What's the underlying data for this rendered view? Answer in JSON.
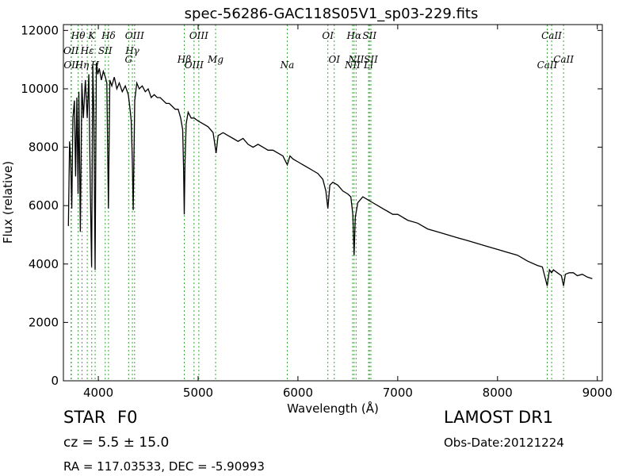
{
  "chart_data": {
    "type": "line",
    "title": "spec-56286-GAC118S05V1_sp03-229.fits",
    "xlabel": "Wavelength (Å)",
    "ylabel": "Flux (relative)",
    "xlim": [
      3650,
      9050
    ],
    "ylim": [
      0,
      12200
    ],
    "xticks": [
      4000,
      5000,
      6000,
      7000,
      8000,
      9000
    ],
    "xtick_labels": [
      "4000",
      "5000",
      "6000",
      "7000",
      "8000",
      "9000"
    ],
    "yticks": [
      0,
      2000,
      4000,
      6000,
      8000,
      10000,
      12000
    ],
    "ytick_labels": [
      "0",
      "2000",
      "4000",
      "6000",
      "8000",
      "10000",
      "12000"
    ],
    "grid": false,
    "line_color": "#000000",
    "marker_color": "#33aa33",
    "spectrum": {
      "x": [
        3700,
        3712,
        3722,
        3734,
        3745,
        3760,
        3772,
        3785,
        3797,
        3805,
        3820,
        3835,
        3850,
        3870,
        3889,
        3905,
        3920,
        3933,
        3945,
        3955,
        3968,
        3980,
        3995,
        4010,
        4030,
        4050,
        4070,
        4085,
        4101,
        4115,
        4135,
        4160,
        4185,
        4210,
        4240,
        4270,
        4300,
        4315,
        4330,
        4340,
        4350,
        4365,
        4385,
        4410,
        4440,
        4470,
        4500,
        4530,
        4560,
        4590,
        4620,
        4650,
        4680,
        4710,
        4740,
        4770,
        4800,
        4825,
        4845,
        4855,
        4861,
        4868,
        4880,
        4900,
        4930,
        4960,
        5000,
        5050,
        5100,
        5150,
        5180,
        5200,
        5250,
        5300,
        5350,
        5400,
        5450,
        5500,
        5550,
        5600,
        5650,
        5700,
        5750,
        5800,
        5850,
        5893,
        5920,
        5950,
        6000,
        6050,
        6100,
        6150,
        6200,
        6250,
        6280,
        6300,
        6320,
        6350,
        6400,
        6450,
        6500,
        6530,
        6550,
        6563,
        6575,
        6600,
        6650,
        6700,
        6750,
        6800,
        6850,
        6900,
        6950,
        7000,
        7100,
        7200,
        7300,
        7400,
        7500,
        7600,
        7700,
        7800,
        7900,
        8000,
        8100,
        8200,
        8300,
        8400,
        8450,
        8498,
        8520,
        8542,
        8560,
        8600,
        8640,
        8662,
        8680,
        8720,
        8760,
        8800,
        8850,
        8900,
        8950
      ],
      "y": [
        5300,
        8200,
        7600,
        5900,
        9000,
        9600,
        7000,
        9700,
        6400,
        9900,
        5100,
        10200,
        9000,
        10300,
        9000,
        10500,
        6500,
        3900,
        10800,
        9200,
        3800,
        10900,
        10500,
        10700,
        10300,
        10600,
        10400,
        10200,
        5900,
        10300,
        10100,
        10400,
        10000,
        10200,
        9900,
        10100,
        9800,
        9400,
        8900,
        7600,
        5850,
        9600,
        10200,
        10000,
        10100,
        9900,
        10000,
        9700,
        9800,
        9700,
        9700,
        9600,
        9500,
        9500,
        9400,
        9300,
        9300,
        9000,
        8600,
        7200,
        5700,
        7400,
        8800,
        9200,
        9000,
        9000,
        8900,
        8800,
        8700,
        8500,
        7800,
        8400,
        8500,
        8400,
        8300,
        8200,
        8300,
        8100,
        8000,
        8100,
        8000,
        7900,
        7900,
        7800,
        7700,
        7400,
        7700,
        7600,
        7500,
        7400,
        7300,
        7200,
        7100,
        6900,
        6500,
        5900,
        6700,
        6800,
        6700,
        6500,
        6400,
        6300,
        5700,
        4300,
        5600,
        6100,
        6300,
        6200,
        6100,
        6000,
        5900,
        5800,
        5700,
        5700,
        5500,
        5400,
        5200,
        5100,
        5000,
        4900,
        4800,
        4700,
        4600,
        4500,
        4400,
        4300,
        4100,
        3950,
        3900,
        3250,
        3800,
        3700,
        3800,
        3700,
        3600,
        3250,
        3650,
        3700,
        3700,
        3600,
        3650,
        3550,
        3500
      ]
    },
    "spectral_lines": [
      {
        "label": "OII",
        "x": 3727,
        "row": 2
      },
      {
        "label": "OII",
        "x": 3730,
        "row": 3
      },
      {
        "label": "Hθ",
        "x": 3798,
        "row": 1
      },
      {
        "label": "Hη",
        "x": 3836,
        "row": 3
      },
      {
        "label": "Hε",
        "x": 3889,
        "row": 2
      },
      {
        "label": "K",
        "x": 3934,
        "row": 1
      },
      {
        "label": "H",
        "x": 3968,
        "row": 3
      },
      {
        "label": "SII",
        "x": 4069,
        "row": 2
      },
      {
        "label": "Hδ",
        "x": 4102,
        "row": 1
      },
      {
        "label": "G",
        "x": 4304,
        "row": 4
      },
      {
        "label": "Hγ",
        "x": 4341,
        "row": 2
      },
      {
        "label": "OIII",
        "x": 4363,
        "row": 1
      },
      {
        "label": "Hβ",
        "x": 4861,
        "row": 4
      },
      {
        "label": "OIII",
        "x": 4959,
        "row": 3
      },
      {
        "label": "OIII",
        "x": 5007,
        "row": 1
      },
      {
        "label": "Mg",
        "x": 5175,
        "row": 4
      },
      {
        "label": "Na",
        "x": 5893,
        "row": 3
      },
      {
        "label": "OI",
        "x": 6300,
        "row": 1
      },
      {
        "label": "OI",
        "x": 6364,
        "row": 4
      },
      {
        "label": "NII",
        "x": 6548,
        "row": 3
      },
      {
        "label": "Hα",
        "x": 6563,
        "row": 1
      },
      {
        "label": "NII",
        "x": 6583,
        "row": 4
      },
      {
        "label": "SII",
        "x": 6717,
        "row": 1
      },
      {
        "label": "Li",
        "x": 6708,
        "row": 3
      },
      {
        "label": "SII",
        "x": 6731,
        "row": 4
      },
      {
        "label": "CaII",
        "x": 8498,
        "row": 3
      },
      {
        "label": "CaII",
        "x": 8542,
        "row": 1
      },
      {
        "label": "CaII",
        "x": 8662,
        "row": 4
      }
    ]
  },
  "info": {
    "object_class": "STAR",
    "subclass": "F0",
    "survey": "LAMOST DR1",
    "cz": "cz = 5.5 ± 15.0",
    "obs_date": "Obs-Date:20121224",
    "coords": "RA = 117.03533, DEC = -5.90993"
  }
}
